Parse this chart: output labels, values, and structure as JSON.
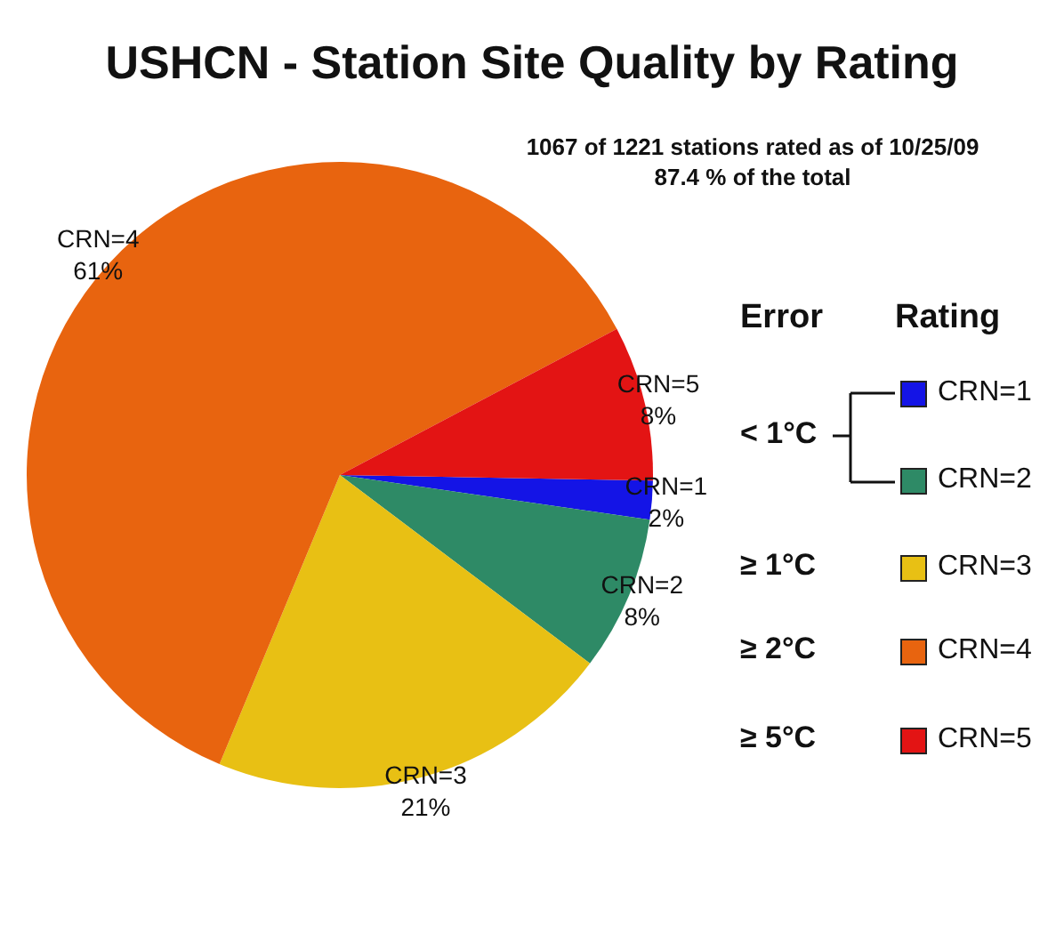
{
  "chart_data": {
    "type": "pie",
    "title": "USHCN - Station Site Quality by Rating",
    "subtitle": "1067 of 1221 stations rated as of 10/25/09",
    "categories": [
      "CRN=1",
      "CRN=2",
      "CRN=3",
      "CRN=4",
      "CRN=5"
    ],
    "values": [
      2,
      8,
      21,
      61,
      8
    ],
    "value_labels": [
      "2%",
      "8%",
      "21%",
      "61%",
      "8%"
    ],
    "colors": [
      "#1414e6",
      "#2e8a66",
      "#e8c014",
      "#e8640f",
      "#e31414"
    ],
    "legend": "right",
    "legend_title": "Rating",
    "annotations": [
      "87.4 % of the total",
      "Error",
      "< 1°C",
      "≥ 1°C",
      "≥ 2°C",
      "≥ 5°C"
    ]
  }
}
